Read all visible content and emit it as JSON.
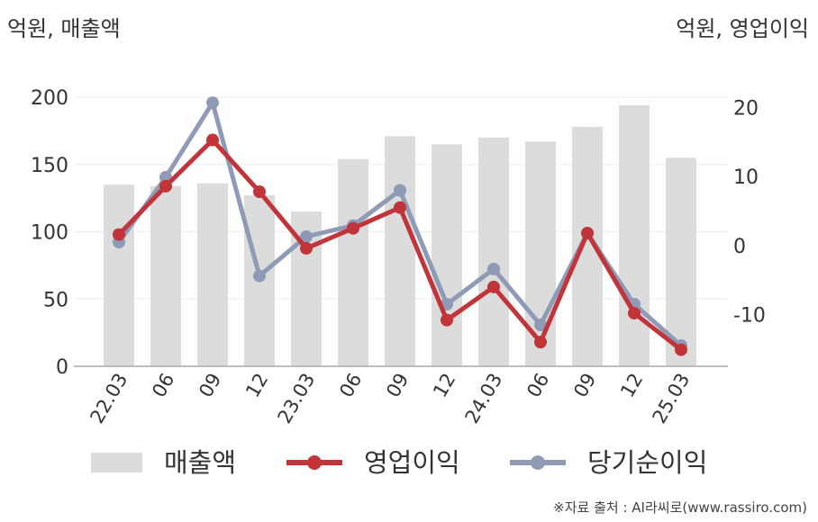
{
  "left_unit": "억원, 매출액",
  "right_unit": "억원, 영업이익",
  "source": "※자료 출처 : AI라씨로(www.rassiro.com)",
  "colors": {
    "bar": "#dcdcdc",
    "op": "#c0343a",
    "net": "#8f9bb6"
  },
  "chart_data": {
    "type": "bar+line",
    "categories": [
      "22.03",
      "06",
      "09",
      "12",
      "23.03",
      "06",
      "09",
      "12",
      "24.03",
      "06",
      "09",
      "12",
      "25.03"
    ],
    "y_left": {
      "ylim": [
        0,
        200
      ],
      "ticks": [
        0,
        50,
        100,
        150,
        200
      ]
    },
    "y_right": {
      "ylim": [
        -17.5,
        21.5
      ],
      "ticks": [
        -10,
        0,
        10,
        20
      ]
    },
    "series": [
      {
        "name": "매출액",
        "type": "bar",
        "axis": "left",
        "values": [
          135,
          134,
          136,
          127,
          115,
          154,
          171,
          165,
          170,
          167,
          178,
          194,
          155
        ]
      },
      {
        "name": "영업이익",
        "type": "line",
        "axis": "right",
        "values": [
          1.6,
          8.6,
          15.3,
          7.8,
          -0.4,
          2.5,
          5.5,
          -10.8,
          -6.0,
          -14.0,
          1.8,
          -9.8,
          -15.1
        ]
      },
      {
        "name": "당기순이익",
        "type": "line",
        "axis": "right",
        "values": [
          0.5,
          9.9,
          20.7,
          -4.4,
          1.3,
          2.9,
          8.0,
          -8.5,
          -3.4,
          -11.5,
          1.8,
          -8.5,
          -14.5
        ]
      }
    ]
  }
}
